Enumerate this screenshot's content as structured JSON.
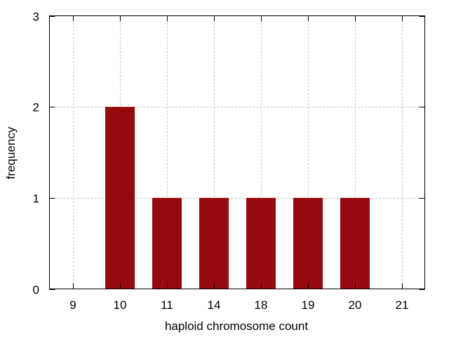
{
  "chart_data": {
    "type": "bar",
    "categories": [
      "9",
      "10",
      "11",
      "14",
      "18",
      "19",
      "20",
      "21"
    ],
    "values": [
      0,
      2,
      1,
      1,
      1,
      1,
      1,
      0
    ],
    "title": "",
    "xlabel": "haploid chromosome count",
    "ylabel": "frequency",
    "ylim": [
      0,
      3
    ],
    "yticks": [
      0,
      1,
      2,
      3
    ],
    "grid": true,
    "bar_color": "#960a0e"
  }
}
